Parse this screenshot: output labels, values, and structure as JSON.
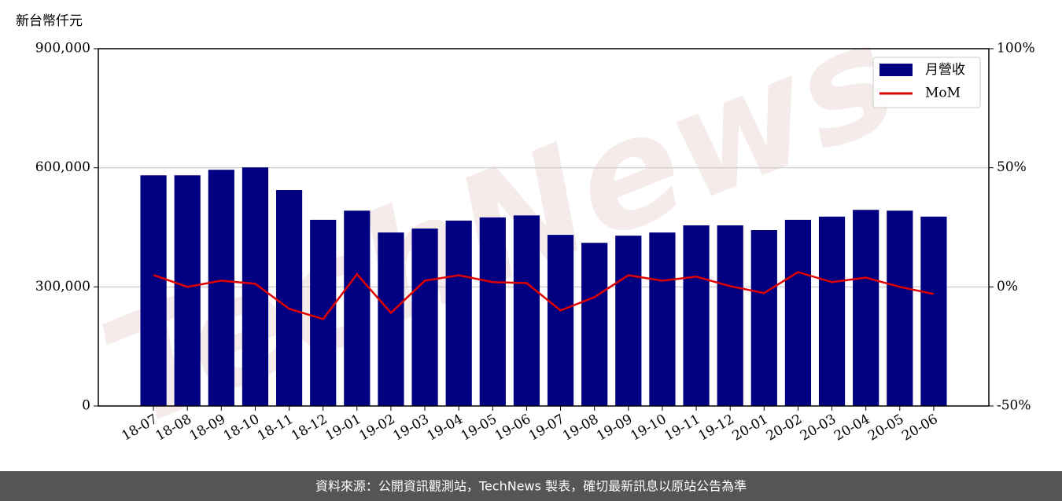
{
  "chart_data": {
    "type": "bar",
    "ylabel": "新台幣仟元",
    "watermark": "TechNews",
    "source": "資料來源：公開資訊觀測站，TechNews 製表，確切最新訊息以原站公告為準",
    "categories": [
      "18-07",
      "18-08",
      "18-09",
      "18-10",
      "18-11",
      "18-12",
      "19-01",
      "19-02",
      "19-03",
      "19-04",
      "19-05",
      "19-06",
      "19-07",
      "19-08",
      "19-09",
      "19-10",
      "19-11",
      "19-12",
      "20-01",
      "20-02",
      "20-03",
      "20-04",
      "20-05",
      "20-06"
    ],
    "series": [
      {
        "name": "月營收",
        "type": "bar",
        "color": "#000080",
        "values": [
          581000,
          581000,
          595000,
          601000,
          544000,
          469000,
          492000,
          437000,
          447000,
          467000,
          475000,
          480000,
          431000,
          411000,
          429000,
          437000,
          455000,
          455000,
          443000,
          469000,
          477000,
          494000,
          492000,
          477000
        ]
      },
      {
        "name": "MoM",
        "type": "line",
        "axis": "y2",
        "color": "#e00000",
        "values": [
          5,
          0,
          2.6,
          1.3,
          -9.2,
          -13.5,
          5.3,
          -10.9,
          2.6,
          4.9,
          2,
          1.6,
          -9.9,
          -4.3,
          4.9,
          2.6,
          4.3,
          0.3,
          -2.6,
          6.2,
          2,
          3.9,
          0,
          -3
        ]
      }
    ],
    "ylim": [
      0,
      900000
    ],
    "yticks": [
      0,
      {
        "value": 300000,
        "label": "300,000"
      },
      {
        "value": 600000,
        "label": "600,000"
      },
      {
        "value": 900000,
        "label": "900,000"
      }
    ],
    "y2lim": [
      -50,
      100
    ],
    "y2ticks": [
      {
        "value": -50,
        "label": "-50%"
      },
      {
        "value": 0,
        "label": "0%"
      },
      {
        "value": 50,
        "label": "50%"
      },
      {
        "value": 100,
        "label": "100%"
      }
    ],
    "grid": true,
    "legend": "upper right"
  }
}
